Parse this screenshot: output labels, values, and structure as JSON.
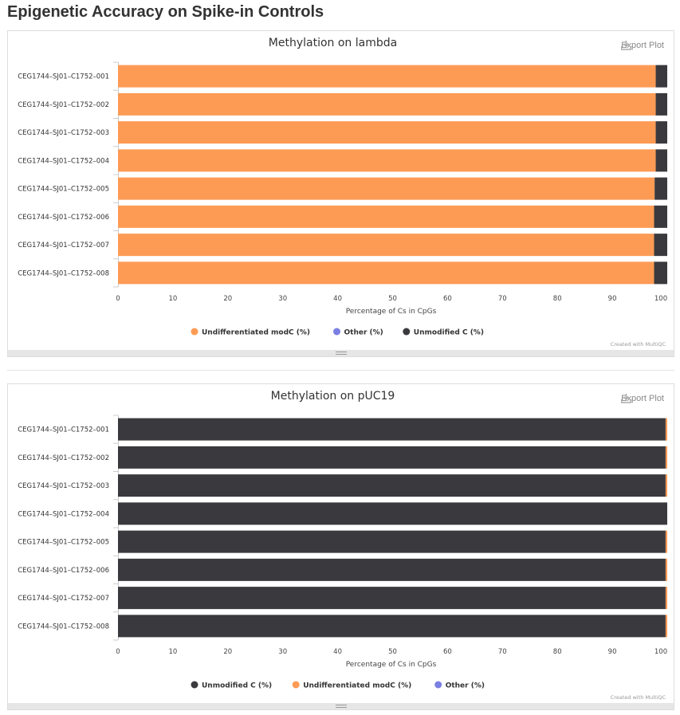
{
  "page": {
    "title": "Epigenetic Accuracy on Spike-in Controls"
  },
  "export_label": "Export Plot",
  "credit": "Created with MultiQC",
  "colors": {
    "orange": "#fd9b55",
    "dark": "#3a3a3e",
    "purple": "#7b7fe2",
    "axis": "#cccccc"
  },
  "chart_data": [
    {
      "type": "bar",
      "orientation": "horizontal",
      "stacked": true,
      "title": "Methylation on lambda",
      "xlabel": "Percentage of Cs in CpGs",
      "xlim": [
        0,
        100
      ],
      "xticks": [
        0,
        10,
        20,
        30,
        40,
        50,
        60,
        70,
        80,
        90,
        100
      ],
      "categories": [
        "CEG1744–SJ01–C1752–001",
        "CEG1744–SJ01–C1752–002",
        "CEG1744–SJ01–C1752–003",
        "CEG1744–SJ01–C1752–004",
        "CEG1744–SJ01–C1752–005",
        "CEG1744–SJ01–C1752–006",
        "CEG1744–SJ01–C1752–007",
        "CEG1744–SJ01–C1752–008"
      ],
      "series": [
        {
          "name": "Undifferentiated modC (%)",
          "color": "#fd9b55",
          "values": [
            97.9,
            97.9,
            97.9,
            97.9,
            97.7,
            97.6,
            97.6,
            97.6
          ]
        },
        {
          "name": "Other (%)",
          "color": "#7b7fe2",
          "values": [
            0,
            0,
            0,
            0,
            0,
            0,
            0,
            0
          ]
        },
        {
          "name": "Unmodified C (%)",
          "color": "#3a3a3e",
          "values": [
            2.1,
            2.1,
            2.1,
            2.1,
            2.3,
            2.4,
            2.4,
            2.4
          ]
        }
      ],
      "legend": {
        "position": "bottom",
        "order": [
          "Undifferentiated modC (%)",
          "Other (%)",
          "Unmodified C (%)"
        ]
      }
    },
    {
      "type": "bar",
      "orientation": "horizontal",
      "stacked": true,
      "title": "Methylation on pUC19",
      "xlabel": "Percentage of Cs in CpGs",
      "xlim": [
        0,
        100
      ],
      "xticks": [
        0,
        10,
        20,
        30,
        40,
        50,
        60,
        70,
        80,
        90,
        100
      ],
      "categories": [
        "CEG1744–SJ01–C1752–001",
        "CEG1744–SJ01–C1752–002",
        "CEG1744–SJ01–C1752–003",
        "CEG1744–SJ01–C1752–004",
        "CEG1744–SJ01–C1752–005",
        "CEG1744–SJ01–C1752–006",
        "CEG1744–SJ01–C1752–007",
        "CEG1744–SJ01–C1752–008"
      ],
      "series": [
        {
          "name": "Unmodified C (%)",
          "color": "#3a3a3e",
          "values": [
            99.7,
            99.7,
            99.7,
            100,
            99.7,
            99.7,
            99.7,
            99.7
          ]
        },
        {
          "name": "Undifferentiated modC (%)",
          "color": "#fd9b55",
          "values": [
            0.3,
            0.3,
            0.3,
            0,
            0.3,
            0.3,
            0.3,
            0.3
          ]
        },
        {
          "name": "Other (%)",
          "color": "#7b7fe2",
          "values": [
            0,
            0,
            0,
            0,
            0,
            0,
            0,
            0
          ]
        }
      ],
      "legend": {
        "position": "bottom",
        "order": [
          "Unmodified C (%)",
          "Undifferentiated modC (%)",
          "Other (%)"
        ]
      }
    }
  ]
}
